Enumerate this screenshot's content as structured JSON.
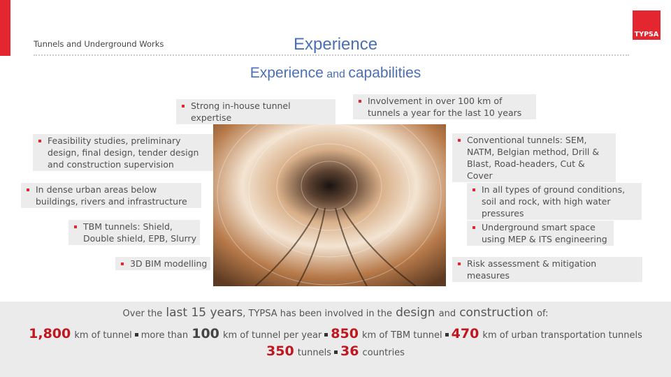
{
  "header": {
    "section": "Tunnels and Underground Works",
    "title": "Experience",
    "logo": "TYPSA"
  },
  "subtitle": {
    "parts": [
      "Experience",
      "and",
      "capabilities"
    ]
  },
  "bullets": [
    "Strong in-house tunnel expertise",
    "Involvement in over 100 km of tunnels a year for the last 10 years",
    "Feasibility studies, preliminary design, final design, tender design and construction supervision",
    "In dense urban areas below buildings, rivers and infrastructure",
    "TBM tunnels: Shield, Double shield, EPB, Slurry",
    "3D BIM modelling",
    "Conventional tunnels: SEM, NATM, Belgian method, Drill & Blast, Road-headers, Cut & Cover",
    "In all types of ground conditions, soil and rock, with high water pressures",
    "Underground smart space using MEP & ITS engineering",
    "Risk assessment & mitigation measures"
  ],
  "summary": {
    "line1": [
      "Over the",
      "last 15 years",
      ", TYPSA has been involved in the",
      "design",
      "and",
      "construction",
      "of:"
    ],
    "line2": [
      "1,800",
      "km of tunnel",
      "more than",
      "100",
      "km of tunnel per year",
      "850",
      "km of TBM tunnel",
      "470",
      "km of urban transportation tunnels"
    ],
    "line3": [
      "350",
      "tunnels",
      "36",
      "countries"
    ]
  }
}
